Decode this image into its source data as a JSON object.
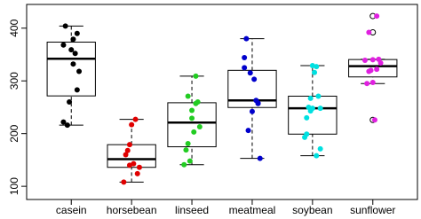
{
  "chart_data": {
    "type": "boxplot",
    "categories": [
      "casein",
      "horsebean",
      "linseed",
      "meatmeal",
      "soybean",
      "sunflower"
    ],
    "boxes": [
      {
        "min": 216,
        "q1": 271.5,
        "median": 342,
        "q3": 373.5,
        "max": 404
      },
      {
        "min": 108,
        "q1": 136,
        "median": 151.5,
        "q3": 179,
        "max": 227
      },
      {
        "min": 141,
        "q1": 175,
        "median": 221,
        "q3": 258.5,
        "max": 309
      },
      {
        "min": 153,
        "q1": 249.5,
        "median": 263,
        "q3": 320,
        "max": 380
      },
      {
        "min": 158,
        "q1": 199,
        "median": 248,
        "q3": 271,
        "max": 329
      },
      {
        "min": 295,
        "q1": 307.5,
        "median": 328,
        "q3": 340.5,
        "max": 341
      }
    ],
    "outliers": [
      [],
      [],
      [],
      [],
      [],
      [
        226,
        392,
        423
      ]
    ],
    "points": [
      {
        "color": "#000000",
        "values": [
          368,
          390,
          379,
          260,
          404,
          318,
          352,
          359,
          216,
          222,
          283,
          332
        ]
      },
      {
        "color": "#e00000",
        "values": [
          179,
          160,
          136,
          227,
          217,
          168,
          108,
          124,
          143,
          140
        ]
      },
      {
        "color": "#22cc22",
        "values": [
          309,
          229,
          181,
          141,
          260,
          203,
          148,
          169,
          213,
          257,
          244,
          271
        ]
      },
      {
        "color": "#0000cc",
        "values": [
          325,
          257,
          303,
          315,
          380,
          153,
          263,
          242,
          206,
          344,
          258
        ]
      },
      {
        "color": "#00e0e0",
        "values": [
          243,
          230,
          248,
          327,
          329,
          250,
          193,
          271,
          316,
          267,
          199,
          171,
          158,
          248
        ]
      },
      {
        "color": "#e020e0",
        "values": [
          423,
          340,
          392,
          339,
          341,
          226,
          320,
          295,
          334,
          322,
          297,
          318
        ]
      }
    ],
    "ylim": [
      75,
      445
    ],
    "yticks": [
      100,
      200,
      300,
      400
    ]
  }
}
